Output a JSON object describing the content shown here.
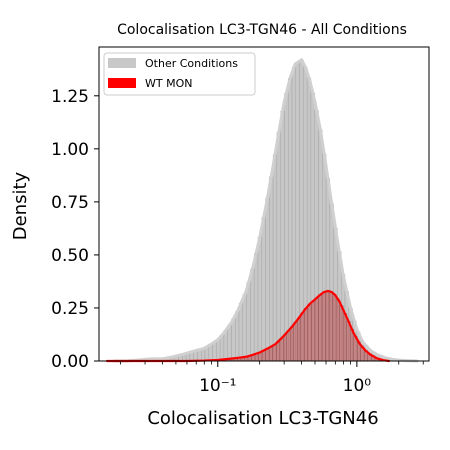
{
  "chart_data": {
    "type": "histogram",
    "title": "Colocalisation LC3-TGN46 - All Conditions",
    "xlabel": "Colocalisation LC3-TGN46",
    "ylabel": "Density",
    "x_scale": "log",
    "xlim": [
      0.014,
      3.3
    ],
    "ylim": [
      0,
      1.48
    ],
    "x_ticks": [
      {
        "value": 0.1,
        "label": "10⁻¹"
      },
      {
        "value": 1.0,
        "label": "10⁰"
      }
    ],
    "y_ticks": [
      {
        "value": 0.0,
        "label": "0.00"
      },
      {
        "value": 0.25,
        "label": "0.25"
      },
      {
        "value": 0.5,
        "label": "0.50"
      },
      {
        "value": 0.75,
        "label": "0.75"
      },
      {
        "value": 1.0,
        "label": "1.00"
      },
      {
        "value": 1.25,
        "label": "1.25"
      }
    ],
    "legend": {
      "position": "top-left"
    },
    "series": [
      {
        "name": "Other Conditions",
        "kind": "histogram+kde",
        "color": "#c0c0c0",
        "x": [
          0.018,
          0.022,
          0.027,
          0.033,
          0.04,
          0.048,
          0.055,
          0.062,
          0.07,
          0.08,
          0.09,
          0.1,
          0.11,
          0.125,
          0.14,
          0.16,
          0.18,
          0.2,
          0.225,
          0.25,
          0.275,
          0.3,
          0.33,
          0.36,
          0.4,
          0.43,
          0.46,
          0.5,
          0.55,
          0.6,
          0.66,
          0.72,
          0.8,
          0.9,
          1.0,
          1.1,
          1.25,
          1.4,
          1.6,
          1.8,
          2.0,
          2.3,
          2.7
        ],
        "y": [
          0.0,
          0.0,
          0.005,
          0.01,
          0.01,
          0.02,
          0.03,
          0.04,
          0.05,
          0.06,
          0.08,
          0.1,
          0.13,
          0.18,
          0.24,
          0.33,
          0.45,
          0.58,
          0.75,
          0.92,
          1.08,
          1.22,
          1.33,
          1.4,
          1.42,
          1.38,
          1.32,
          1.22,
          1.08,
          0.92,
          0.74,
          0.58,
          0.4,
          0.25,
          0.15,
          0.09,
          0.05,
          0.03,
          0.015,
          0.008,
          0.004,
          0.002,
          0.0
        ]
      },
      {
        "name": "WT MON",
        "kind": "histogram+kde",
        "color": "#ff0000",
        "x": [
          0.016,
          0.025,
          0.04,
          0.06,
          0.08,
          0.1,
          0.12,
          0.14,
          0.16,
          0.18,
          0.2,
          0.23,
          0.26,
          0.3,
          0.34,
          0.38,
          0.42,
          0.46,
          0.5,
          0.54,
          0.58,
          0.62,
          0.66,
          0.7,
          0.75,
          0.8,
          0.88,
          0.95,
          1.05,
          1.15,
          1.25,
          1.4,
          1.55,
          1.7
        ],
        "y": [
          0.0,
          0.0,
          0.0,
          0.0,
          0.002,
          0.005,
          0.01,
          0.015,
          0.02,
          0.03,
          0.04,
          0.06,
          0.08,
          0.12,
          0.16,
          0.2,
          0.24,
          0.27,
          0.29,
          0.31,
          0.325,
          0.33,
          0.325,
          0.31,
          0.28,
          0.24,
          0.18,
          0.13,
          0.08,
          0.05,
          0.03,
          0.012,
          0.004,
          0.0
        ]
      }
    ]
  }
}
